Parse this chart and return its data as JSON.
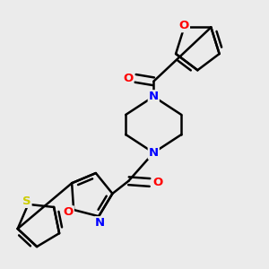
{
  "background_color": "#ebebeb",
  "bond_color": "#000000",
  "atom_colors": {
    "N": "#0000ff",
    "O": "#ff0000",
    "S": "#cccc00",
    "C": "#000000"
  },
  "figsize": [
    3.0,
    3.0
  ],
  "dpi": 100
}
